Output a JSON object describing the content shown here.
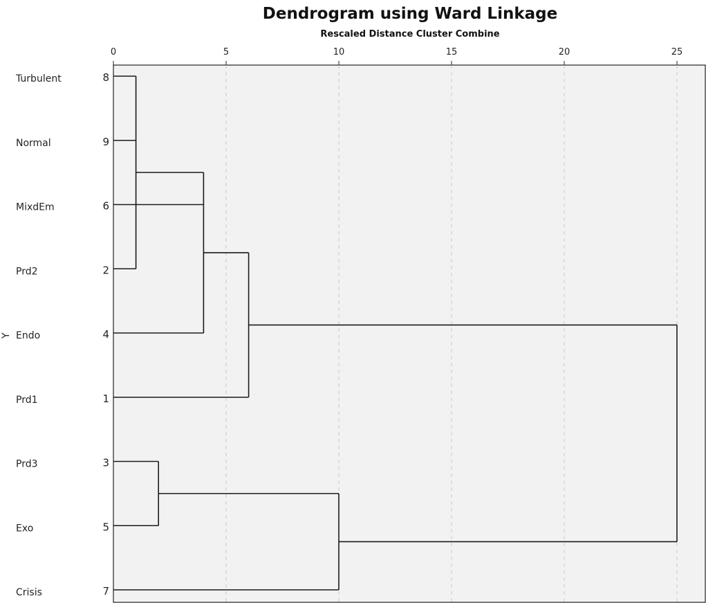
{
  "chart_data": {
    "type": "dendrogram",
    "title": "Dendrogram using Ward Linkage",
    "subtitle": "Rescaled Distance Cluster Combine",
    "ylabel": "Y",
    "xlim": [
      0,
      25
    ],
    "x_ticks": [
      "0",
      "5",
      "10",
      "15",
      "20",
      "25"
    ],
    "x_tick_values": [
      0,
      5,
      10,
      15,
      20,
      25
    ],
    "grid": true,
    "colors": {
      "plot_bg": "#f2f2f2",
      "link": "#1a1a1a",
      "grid": "#c8c8c8"
    },
    "leaves": [
      {
        "label": "Turbulent",
        "id": "8"
      },
      {
        "label": "Normal",
        "id": "9"
      },
      {
        "label": "MixdEm",
        "id": "6"
      },
      {
        "label": "Prd2",
        "id": "2"
      },
      {
        "label": "Endo",
        "id": "4"
      },
      {
        "label": "Prd1",
        "id": "1"
      },
      {
        "label": "Prd3",
        "id": "3"
      },
      {
        "label": "Exo",
        "id": "5"
      },
      {
        "label": "Crisis",
        "id": "7"
      }
    ],
    "merges": [
      {
        "members": [
          "8",
          "9",
          "2"
        ],
        "distance": 1
      },
      {
        "members": [
          "8-9-2",
          "6",
          "4"
        ],
        "distance": 4
      },
      {
        "members": [
          "8-9-2-6-4",
          "1"
        ],
        "distance": 6
      },
      {
        "members": [
          "3",
          "5"
        ],
        "distance": 2
      },
      {
        "members": [
          "3-5",
          "7"
        ],
        "distance": 10
      },
      {
        "members": [
          "8-9-2-6-4-1",
          "3-5-7"
        ],
        "distance": 25
      }
    ]
  }
}
